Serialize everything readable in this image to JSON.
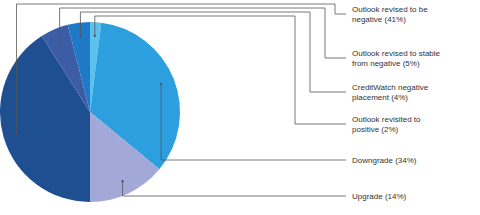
{
  "chart_data": {
    "type": "pie",
    "categories": [
      "Outlook revised to be negative (41%)",
      "Outlook revised to stable from negative (5%)",
      "CreditWatch negative placement (4%)",
      "Outlook revisited to positive (2%)",
      "Downgrade (34%)",
      "Upgrade (14%)"
    ],
    "values": [
      41,
      5,
      4,
      2,
      34,
      14
    ],
    "colors": [
      "#1d4f91",
      "#3c5ca6",
      "#2079c7",
      "#5cc1ec",
      "#2d9fdf",
      "#a2a8d8"
    ]
  }
}
